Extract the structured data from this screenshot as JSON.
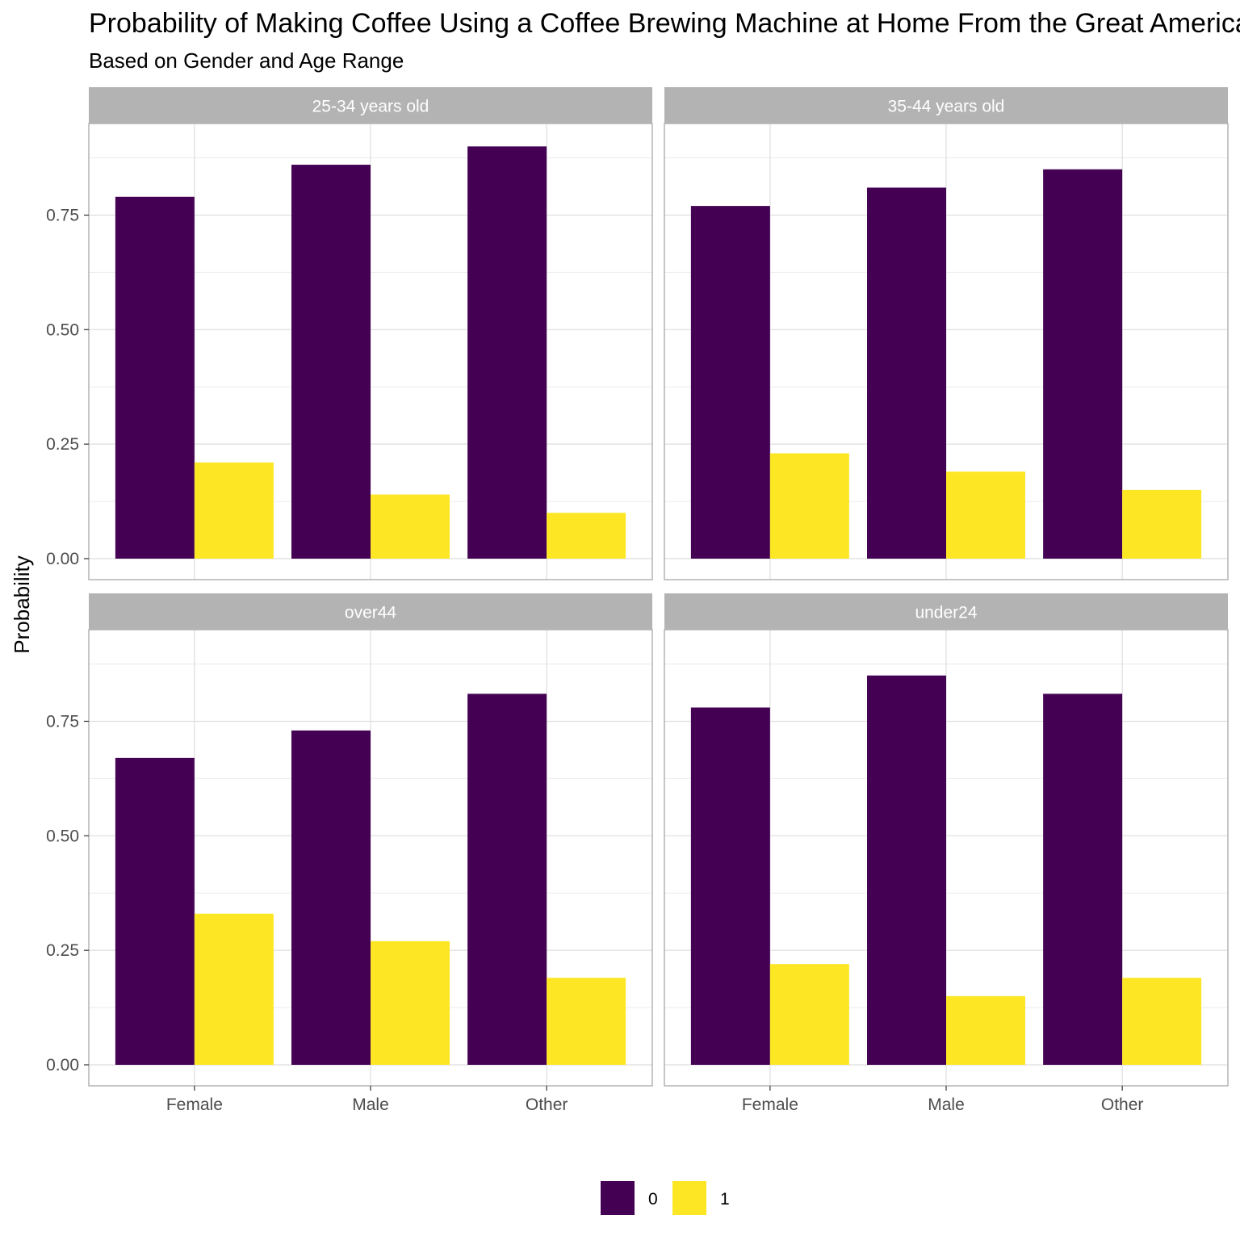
{
  "chart_data": {
    "type": "bar",
    "title": "Probability of Making Coffee Using a Coffee Brewing Machine at Home From the Great American Coffee Taste Test",
    "subtitle": "Based on Gender and Age Range",
    "xlabel": "",
    "ylabel": "Probability",
    "ylim": [
      0,
      0.95
    ],
    "y_ticks": [
      "0.00",
      "0.25",
      "0.50",
      "0.75"
    ],
    "y_tick_values": [
      0,
      0.25,
      0.5,
      0.75
    ],
    "categories": [
      "Female",
      "Male",
      "Other"
    ],
    "grid": true,
    "legend_position": "bottom",
    "series_colors": {
      "0": "#440154",
      "1": "#FDE725"
    },
    "legend": [
      {
        "label": "0",
        "color": "#440154"
      },
      {
        "label": "1",
        "color": "#FDE725"
      }
    ],
    "facets": [
      {
        "label": "25-34 years old",
        "series": [
          {
            "name": "0",
            "values": [
              0.79,
              0.86,
              0.9
            ]
          },
          {
            "name": "1",
            "values": [
              0.21,
              0.14,
              0.1
            ]
          }
        ]
      },
      {
        "label": "35-44 years old",
        "series": [
          {
            "name": "0",
            "values": [
              0.77,
              0.81,
              0.85
            ]
          },
          {
            "name": "1",
            "values": [
              0.23,
              0.19,
              0.15
            ]
          }
        ]
      },
      {
        "label": "over44",
        "series": [
          {
            "name": "0",
            "values": [
              0.67,
              0.73,
              0.81
            ]
          },
          {
            "name": "1",
            "values": [
              0.33,
              0.27,
              0.19
            ]
          }
        ]
      },
      {
        "label": "under24",
        "series": [
          {
            "name": "0",
            "values": [
              0.78,
              0.85,
              0.81
            ]
          },
          {
            "name": "1",
            "values": [
              0.22,
              0.15,
              0.19
            ]
          }
        ]
      }
    ]
  }
}
